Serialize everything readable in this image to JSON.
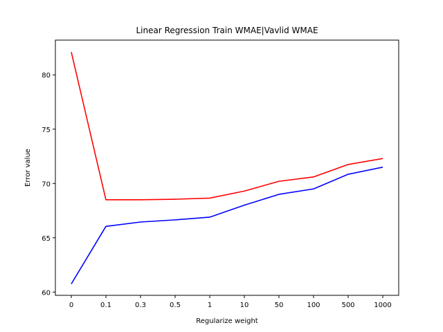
{
  "chart_data": {
    "type": "line",
    "title": "Linear Regression Train WMAE|Vavlid WMAE",
    "xlabel": "Regularize weight",
    "ylabel": "Error value",
    "categories": [
      "0",
      "0.1",
      "0.3",
      "0.5",
      "1",
      "10",
      "50",
      "100",
      "500",
      "1000"
    ],
    "yticks": [
      60,
      65,
      70,
      75,
      80
    ],
    "ylim": [
      59.7,
      83.2
    ],
    "grid": false,
    "series": [
      {
        "color": "#ff0000",
        "values": [
          82.1,
          68.5,
          68.5,
          68.55,
          68.65,
          69.3,
          70.2,
          70.6,
          71.75,
          72.3
        ]
      },
      {
        "color": "#0000ff",
        "values": [
          60.75,
          66.05,
          66.45,
          66.65,
          66.9,
          68.0,
          69.0,
          69.5,
          70.85,
          71.5
        ]
      }
    ]
  }
}
